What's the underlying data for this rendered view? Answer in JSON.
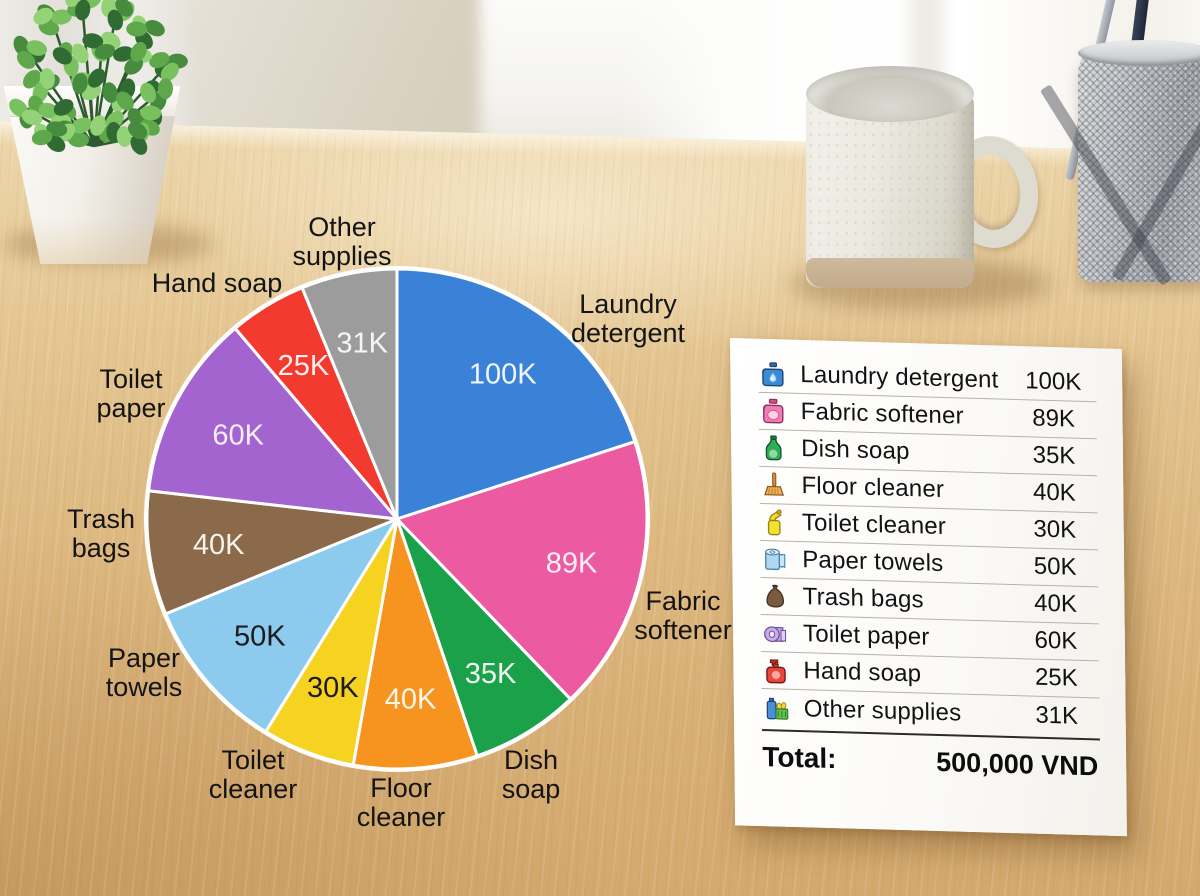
{
  "chart_data": {
    "type": "pie",
    "title": "",
    "legend": "none",
    "total": 500,
    "slices": [
      {
        "label": "Laundry detergent",
        "value": 100,
        "value_label": "100K",
        "color": "#3a82d8",
        "value_text_color": "#f2f6fb"
      },
      {
        "label": "Fabric softener",
        "value": 89,
        "value_label": "89K",
        "color": "#ec5ba2",
        "value_text_color": "#fdeef6"
      },
      {
        "label": "Dish soap",
        "value": 35,
        "value_label": "35K",
        "color": "#1ca14b",
        "value_text_color": "#eef9f1"
      },
      {
        "label": "Floor cleaner",
        "value": 40,
        "value_label": "40K",
        "color": "#f79420",
        "value_text_color": "#fff7ec"
      },
      {
        "label": "Toilet cleaner",
        "value": 30,
        "value_label": "30K",
        "color": "#f6d320",
        "value_text_color": "#1c1c1c"
      },
      {
        "label": "Paper towels",
        "value": 50,
        "value_label": "50K",
        "color": "#8ccaee",
        "value_text_color": "#1c1c1c"
      },
      {
        "label": "Trash bags",
        "value": 40,
        "value_label": "40K",
        "color": "#8b6a4b",
        "value_text_color": "#f7f2ec"
      },
      {
        "label": "Toilet paper",
        "value": 60,
        "value_label": "60K",
        "color": "#a464cf",
        "value_text_color": "#f6eefb"
      },
      {
        "label": "Hand soap",
        "value": 25,
        "value_label": "25K",
        "color": "#f23a2e",
        "value_text_color": "#fdf0ef"
      },
      {
        "label": "Other supplies",
        "value": 31,
        "value_label": "31K",
        "color": "#9c9c9c",
        "value_text_color": "#f5f5f5"
      }
    ]
  },
  "paper": {
    "rows": [
      {
        "icon": "laundry-detergent-icon",
        "label": "Laundry detergent",
        "value": "100K"
      },
      {
        "icon": "fabric-softener-icon",
        "label": "Fabric softener",
        "value": "89K"
      },
      {
        "icon": "dish-soap-icon",
        "label": "Dish soap",
        "value": "35K"
      },
      {
        "icon": "floor-cleaner-icon",
        "label": "Floor cleaner",
        "value": "40K"
      },
      {
        "icon": "toilet-cleaner-icon",
        "label": "Toilet cleaner",
        "value": "30K"
      },
      {
        "icon": "paper-towels-icon",
        "label": "Paper towels",
        "value": "50K"
      },
      {
        "icon": "trash-bags-icon",
        "label": "Trash bags",
        "value": "40K"
      },
      {
        "icon": "toilet-paper-icon",
        "label": "Toilet paper",
        "value": "60K"
      },
      {
        "icon": "hand-soap-icon",
        "label": "Hand soap",
        "value": "25K"
      },
      {
        "icon": "other-supplies-icon",
        "label": "Other supplies",
        "value": "31K"
      }
    ],
    "total_label": "Total:",
    "total_value": "500,000 VND"
  }
}
